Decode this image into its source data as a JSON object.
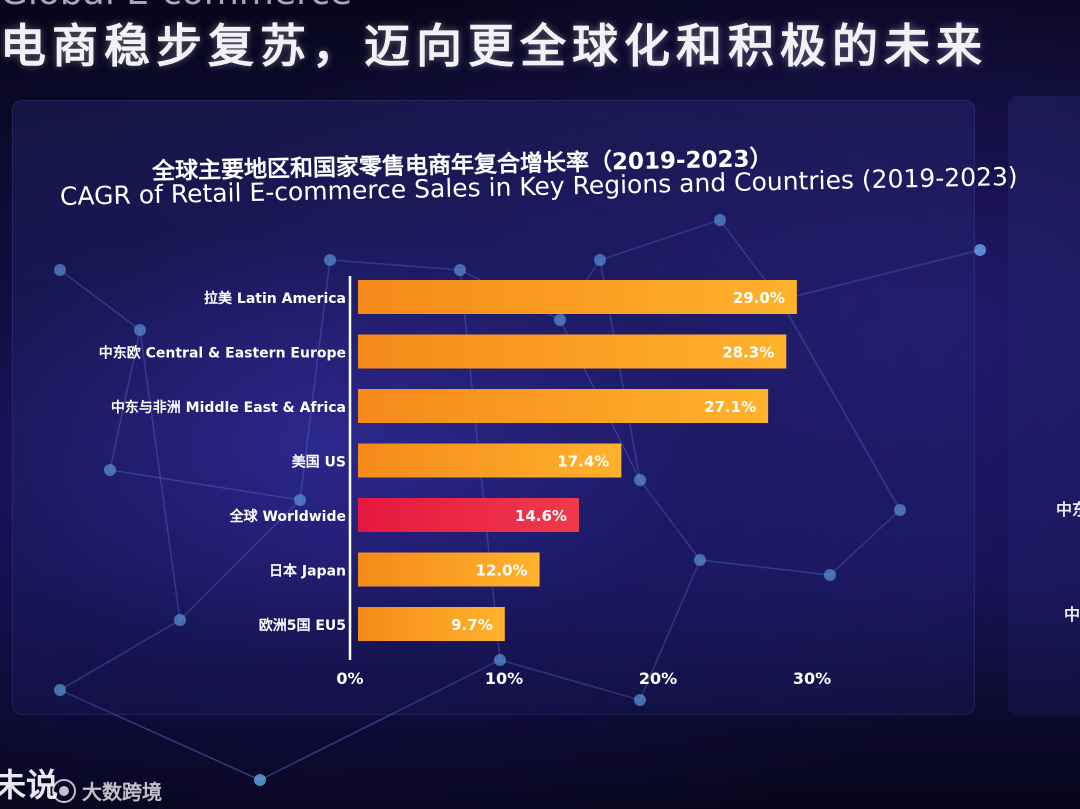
{
  "slide": {
    "headline_top": "Global E-commerce",
    "headline": "电商稳步复苏，迈向更全球化和积极的未来",
    "right_panel_fragments": [
      "中东",
      "中"
    ],
    "corner_text": "未说",
    "watermark": "大数跨境"
  },
  "chart_data": {
    "type": "bar",
    "orientation": "horizontal",
    "title": "全球主要地区和国家零售电商年复合增长率（2019-2023）",
    "subtitle": "CAGR of Retail E-commerce Sales in Key Regions and Countries (2019-2023)",
    "categories": [
      "拉美 Latin America",
      "中东欧 Central & Eastern Europe",
      "中东与非洲 Middle East & Africa",
      "美国 US",
      "全球 Worldwide",
      "日本 Japan",
      "欧洲5国 EU5"
    ],
    "values": [
      29.0,
      28.3,
      27.1,
      17.4,
      14.6,
      12.0,
      9.7
    ],
    "data_labels": [
      "29.0%",
      "28.3%",
      "27.1%",
      "17.4%",
      "14.6%",
      "12.0%",
      "9.7%"
    ],
    "highlight_index": 4,
    "xlim": [
      0,
      30
    ],
    "x_ticks": [
      0,
      10,
      20,
      30
    ],
    "x_tick_labels": [
      "0%",
      "10%",
      "20%",
      "30%"
    ],
    "grid": false,
    "colors": {
      "bar": "#f7a020",
      "bar_highlight": "#e8234a",
      "label": "#ffffff"
    }
  }
}
